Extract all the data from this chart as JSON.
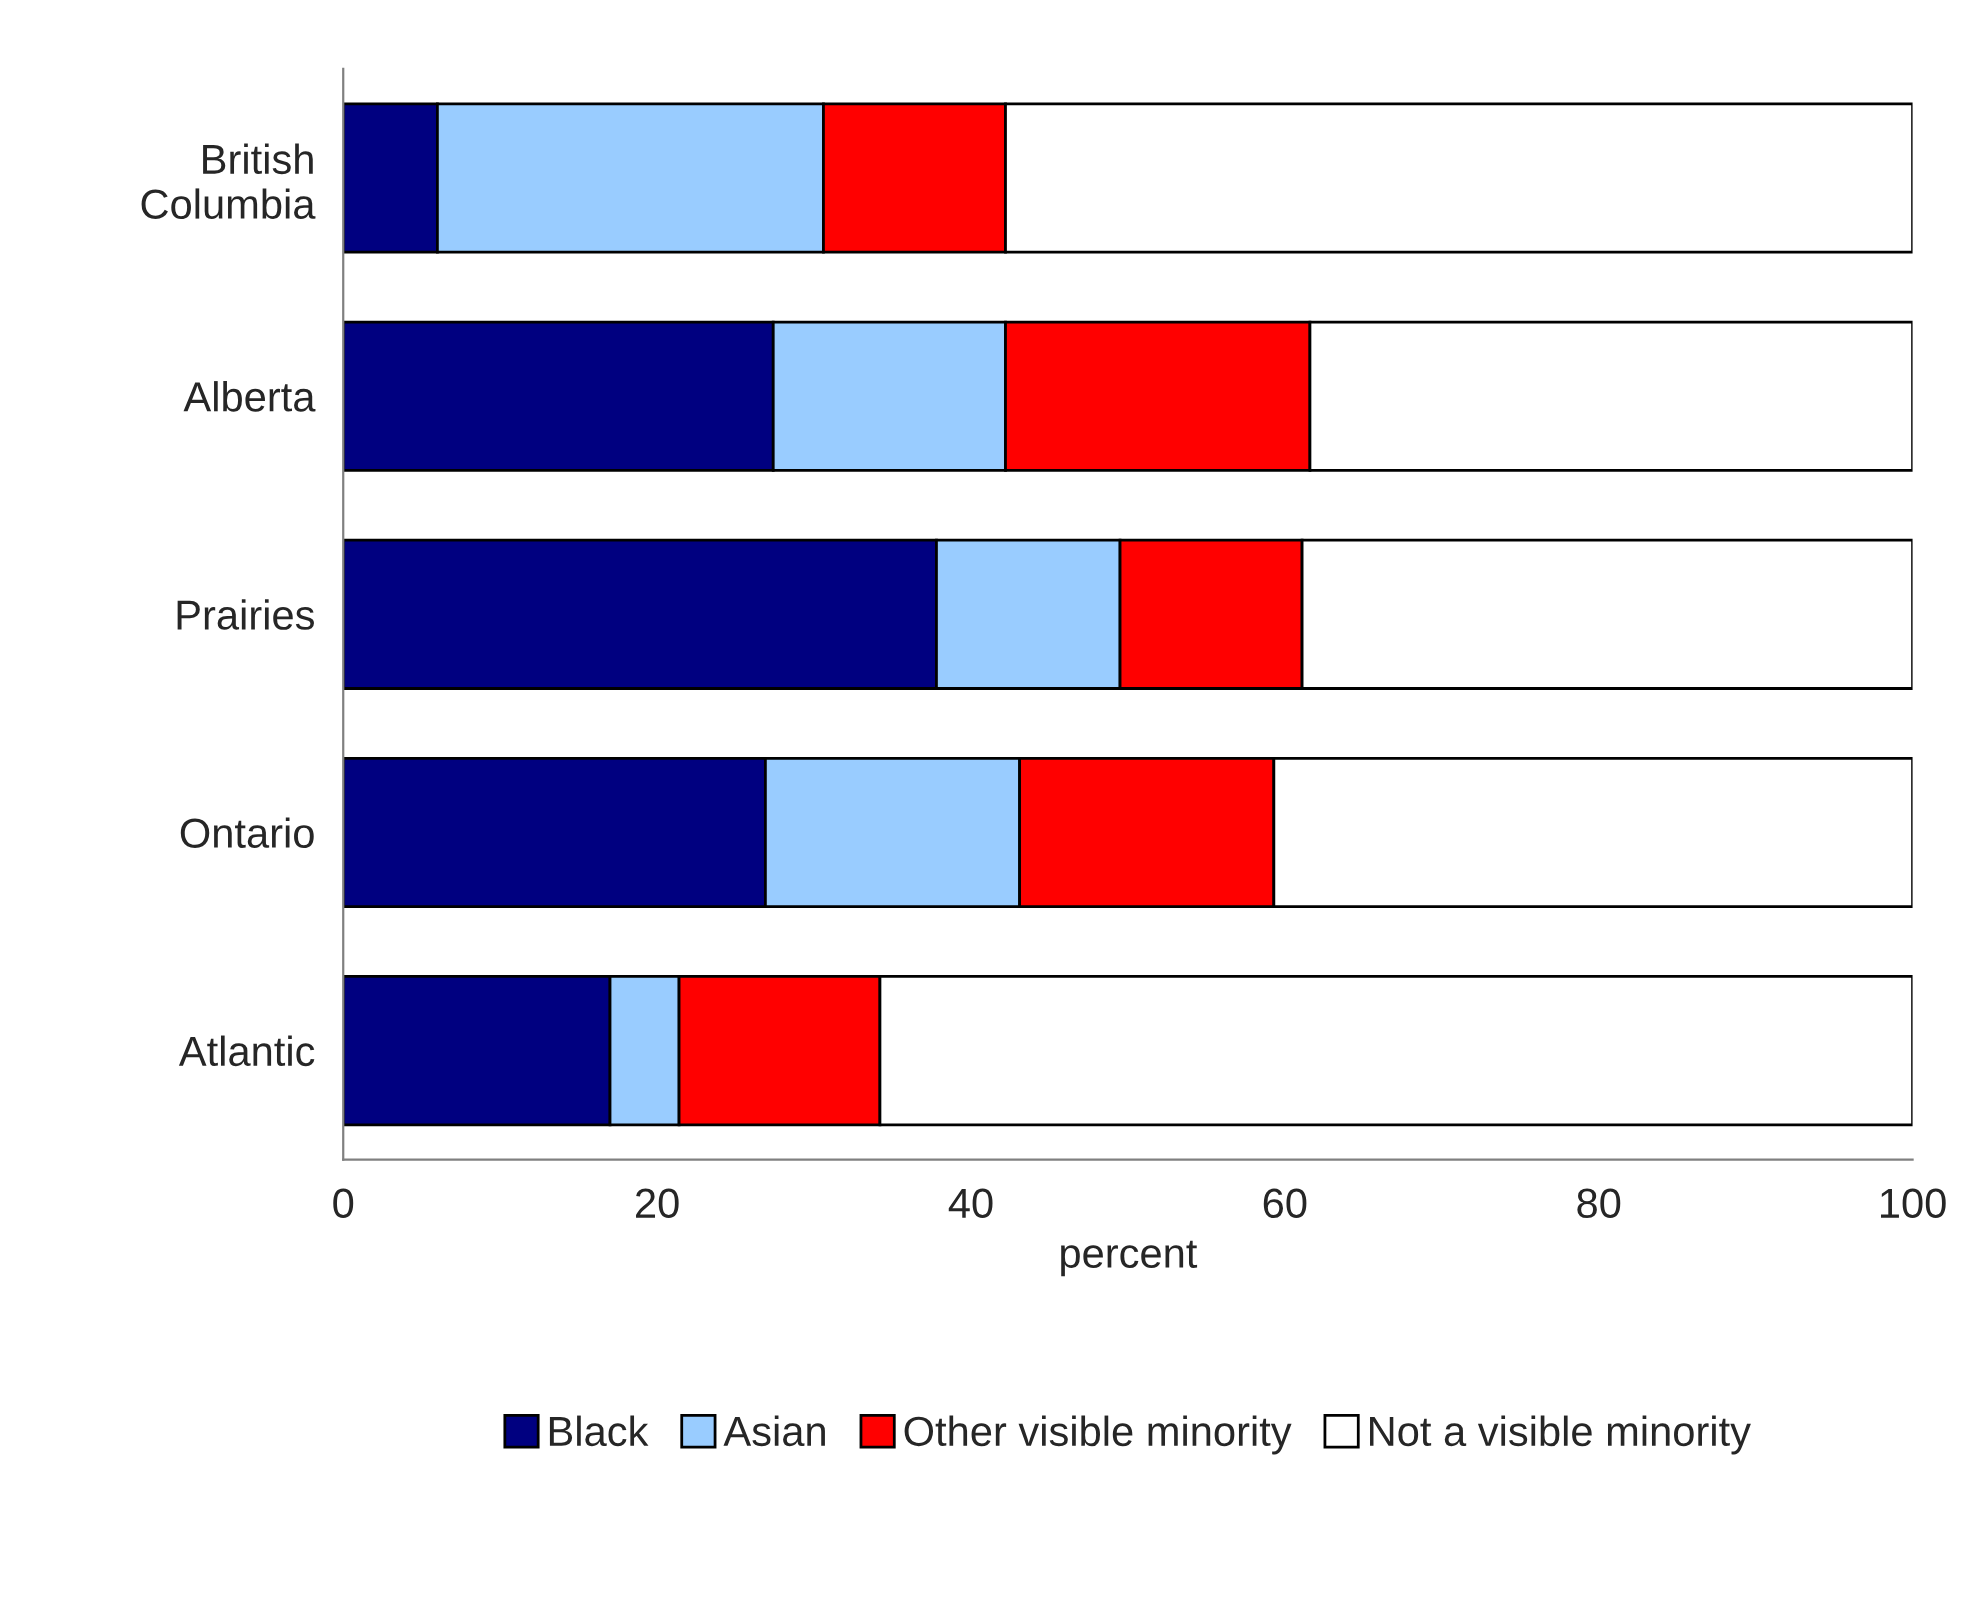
{
  "chart_data": {
    "type": "bar",
    "orientation": "horizontal",
    "stacked": true,
    "xlabel": "percent",
    "categories": [
      "British\nColumbia",
      "Alberta",
      "Prairies",
      "Ontario",
      "Atlantic"
    ],
    "series": [
      {
        "name": "Black",
        "color": "#000080",
        "values": [
          6.0,
          27.4,
          37.8,
          26.9,
          17.0
        ]
      },
      {
        "name": "Asian",
        "color": "#99ccff",
        "values": [
          24.6,
          14.8,
          11.7,
          16.2,
          4.4
        ]
      },
      {
        "name": "Other visible minority",
        "color": "#ff0000",
        "values": [
          11.6,
          19.4,
          11.6,
          16.2,
          12.8
        ]
      },
      {
        "name": "Not a visible minority",
        "color": "#ffffff",
        "values": [
          57.8,
          38.4,
          38.9,
          40.7,
          65.8
        ]
      }
    ],
    "xlim": [
      0,
      100
    ],
    "xticks": [
      0,
      20,
      40,
      60,
      80,
      100
    ],
    "grid": false,
    "legend": "bottom"
  }
}
